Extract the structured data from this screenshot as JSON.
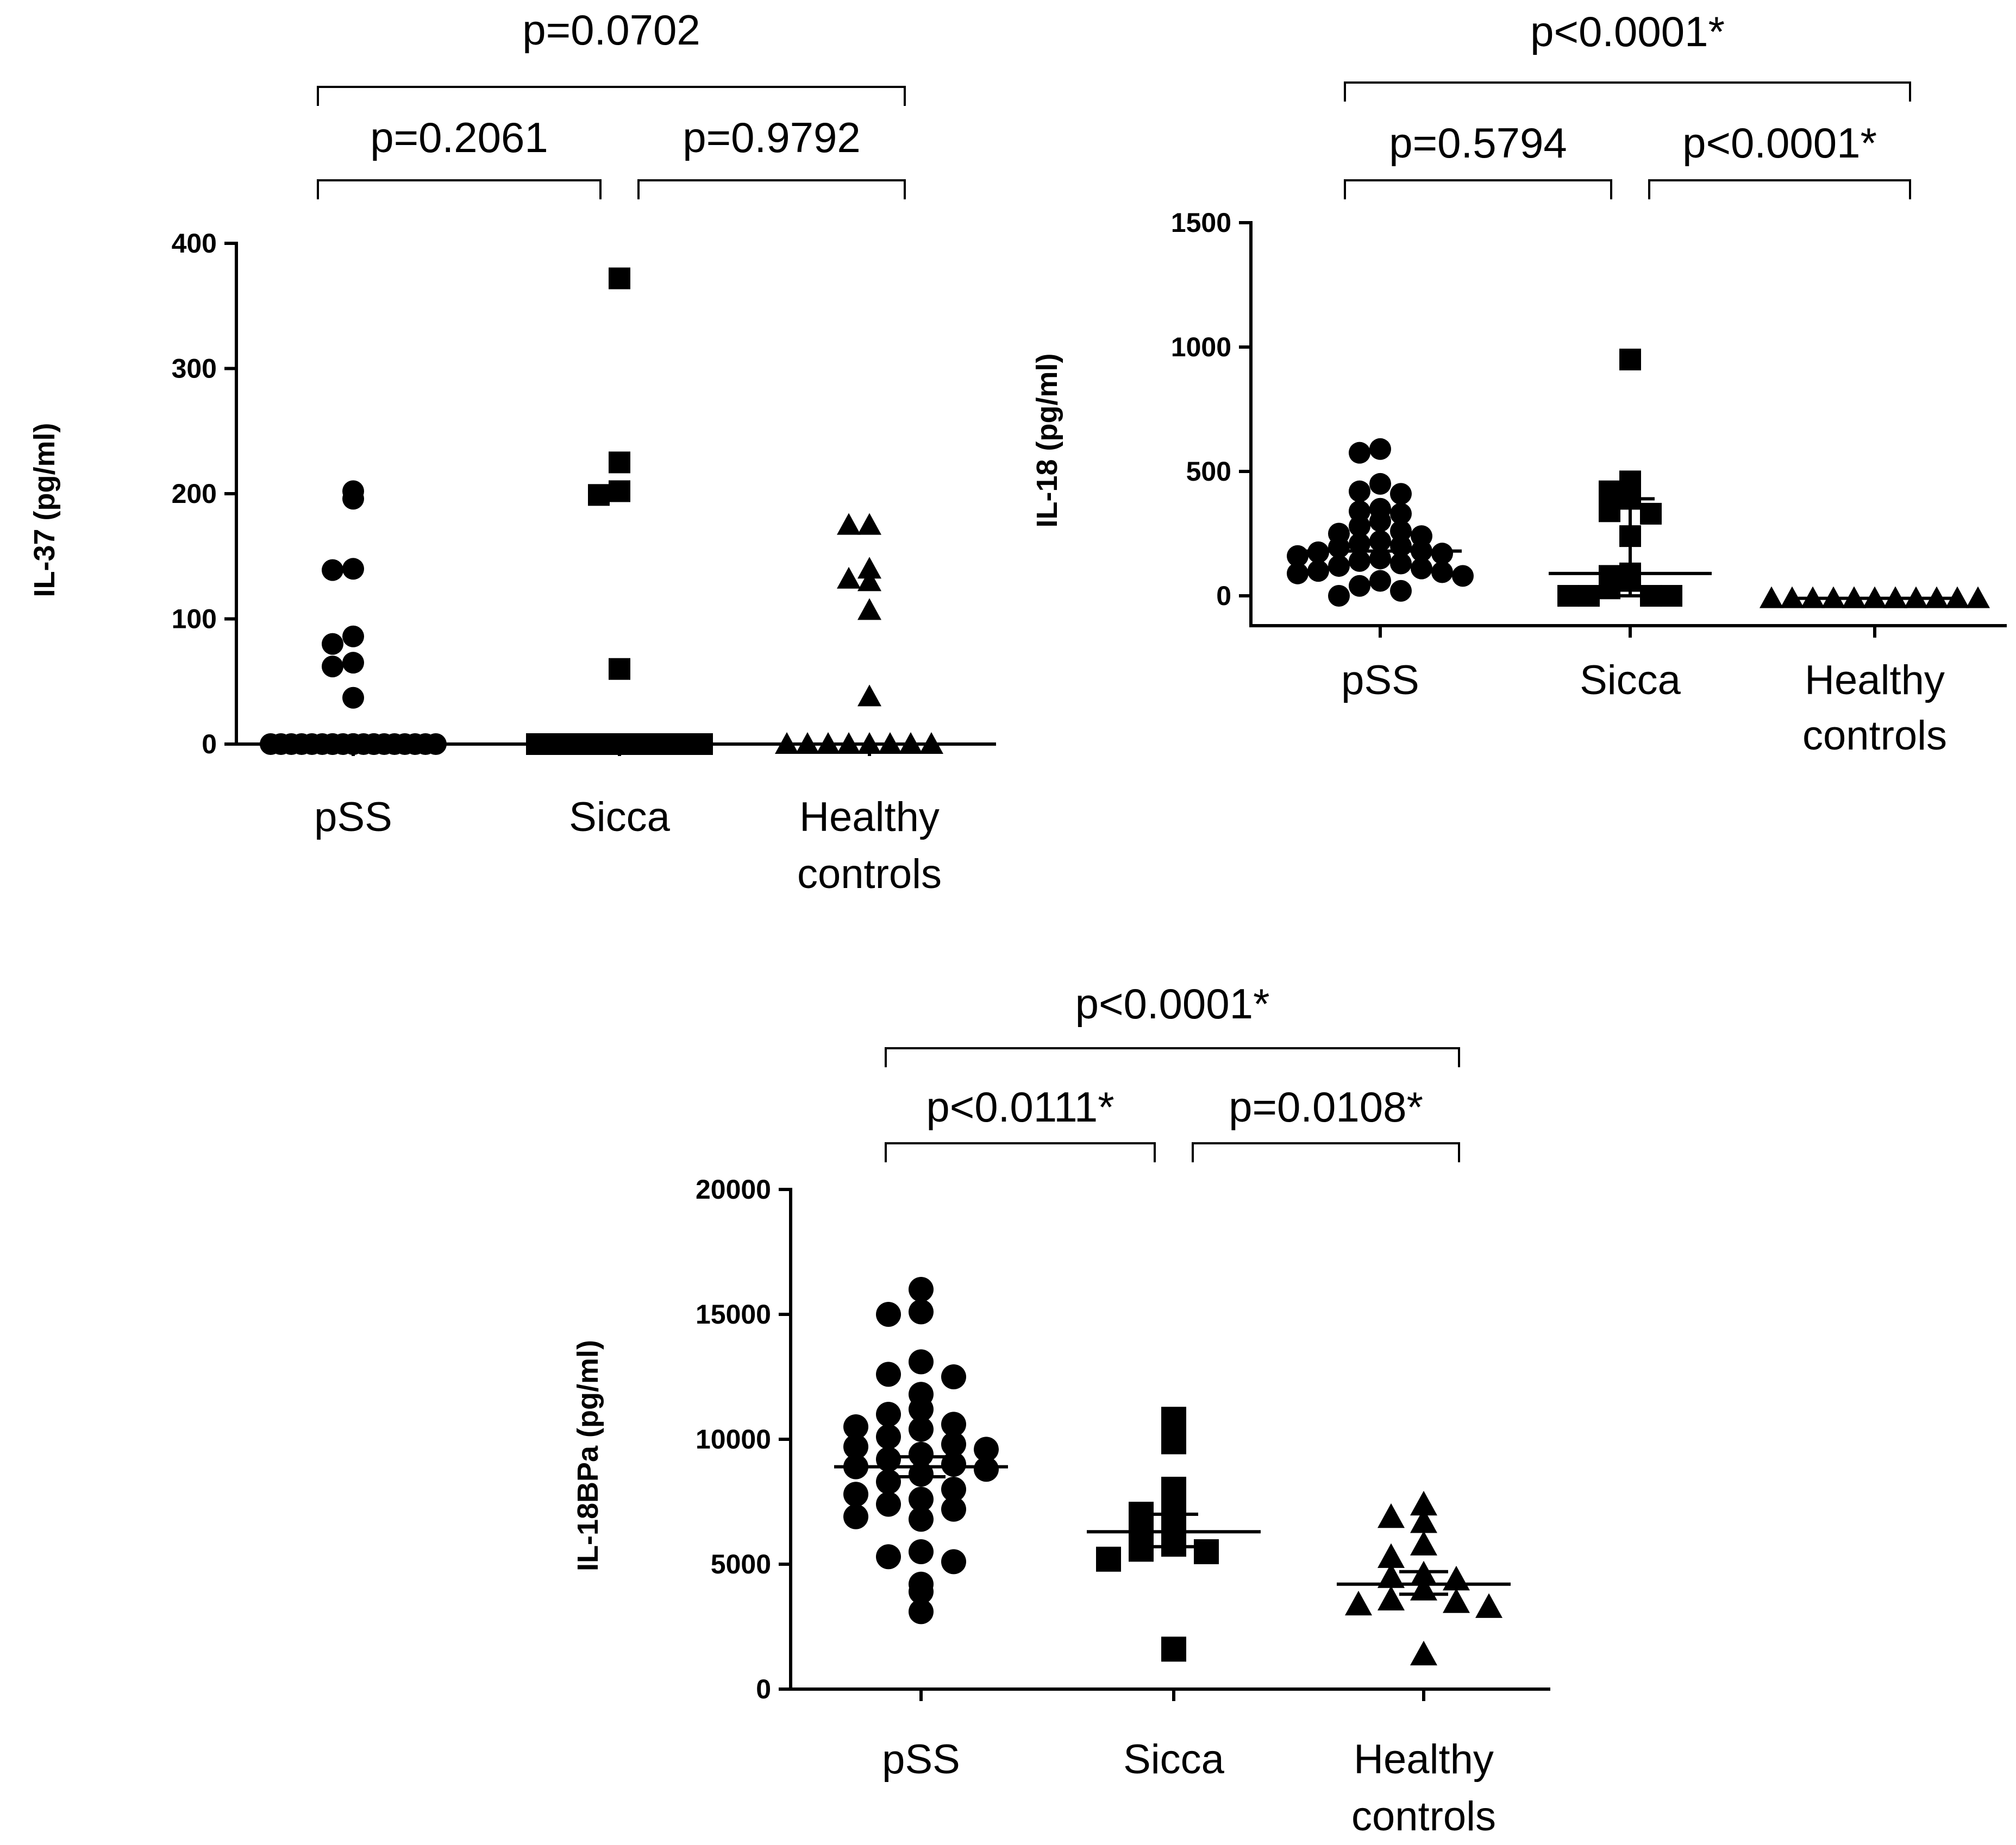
{
  "chart_data": [
    {
      "type": "scatter",
      "ylabel": "IL-37 (pg/ml)",
      "ylim": [
        0,
        400
      ],
      "yticks": [
        "0",
        "100",
        "200",
        "300",
        "400"
      ],
      "categories": [
        "pSS",
        "Sicca",
        "Healthy\ncontrols"
      ],
      "category_labels": [
        [
          "pSS"
        ],
        [
          "Sicca"
        ],
        [
          "Healthy",
          "controls"
        ]
      ],
      "markers": [
        "circle",
        "square",
        "triangle"
      ],
      "series": [
        {
          "name": "pSS",
          "values": [
            202,
            196,
            140,
            139,
            86,
            80,
            65,
            62,
            37,
            0,
            0,
            0,
            0,
            0,
            0,
            0,
            0,
            0,
            0,
            0,
            0,
            0,
            0,
            0,
            0,
            0,
            0,
            0,
            0,
            0
          ],
          "median": 0
        },
        {
          "name": "Sicca",
          "values": [
            372,
            225,
            202,
            199,
            60,
            0,
            0,
            0,
            0,
            0,
            0,
            0,
            0,
            0,
            0
          ],
          "median": 0
        },
        {
          "name": "Healthy controls",
          "values": [
            175,
            175,
            140,
            130,
            132,
            107,
            38,
            0,
            0,
            0,
            0,
            0,
            0,
            0,
            0
          ],
          "median": 0
        }
      ],
      "comparisons": [
        {
          "from": 0,
          "to": 2,
          "level": 0,
          "label": "p=0.0702"
        },
        {
          "from": 0,
          "to": 1,
          "level": 1,
          "label": "p=0.2061"
        },
        {
          "from": 1,
          "to": 2,
          "level": 1,
          "label": "p=0.9792"
        }
      ]
    },
    {
      "type": "scatter",
      "ylabel": "IL-18 (pg/ml)",
      "ylim": [
        -120,
        1500
      ],
      "yticks": [
        "0",
        "500",
        "1000",
        "1500"
      ],
      "categories": [
        "pSS",
        "Sicca",
        "Healthy\ncontrols"
      ],
      "category_labels": [
        [
          "pSS"
        ],
        [
          "Sicca"
        ],
        [
          "Healthy",
          "controls"
        ]
      ],
      "markers": [
        "circle",
        "square",
        "triangle"
      ],
      "series": [
        {
          "name": "pSS",
          "values": [
            590,
            575,
            450,
            420,
            410,
            350,
            340,
            330,
            300,
            280,
            260,
            250,
            240,
            220,
            210,
            200,
            195,
            180,
            175,
            170,
            160,
            150,
            140,
            130,
            120,
            110,
            100,
            95,
            90,
            80,
            60,
            40,
            20,
            0
          ],
          "median": 180
        },
        {
          "name": "Sicca",
          "values": [
            950,
            460,
            420,
            390,
            340,
            330,
            240,
            90,
            80,
            60,
            30,
            0,
            0,
            0,
            0
          ],
          "median": 90,
          "q1": 0,
          "q3": 390
        },
        {
          "name": "Healthy controls",
          "values": [
            -10,
            -10,
            -10,
            -10,
            -10,
            -10,
            -10,
            -10,
            -10,
            -10,
            -10,
            -10,
            -10
          ],
          "median": -10
        }
      ],
      "comparisons": [
        {
          "from": 0,
          "to": 2,
          "level": 0,
          "label": "p<0.0001*"
        },
        {
          "from": 0,
          "to": 1,
          "level": 1,
          "label": "p=0.5794"
        },
        {
          "from": 1,
          "to": 2,
          "level": 1,
          "label": "p<0.0001*"
        }
      ]
    },
    {
      "type": "scatter",
      "ylabel": "IL-18BPa (pg/ml)",
      "ylim": [
        0,
        20000
      ],
      "yticks": [
        "0",
        "5000",
        "10000",
        "15000",
        "20000"
      ],
      "categories": [
        "pSS",
        "Sicca",
        "Healthy\ncontrols"
      ],
      "category_labels": [
        [
          "pSS"
        ],
        [
          "Sicca"
        ],
        [
          "Healthy",
          "controls"
        ]
      ],
      "markers": [
        "circle",
        "square",
        "triangle"
      ],
      "series": [
        {
          "name": "pSS",
          "values": [
            16000,
            15100,
            15000,
            13100,
            12600,
            12500,
            11800,
            11200,
            11000,
            10600,
            10500,
            10400,
            10100,
            9800,
            9700,
            9600,
            9400,
            9200,
            9000,
            8900,
            8800,
            8600,
            8300,
            8000,
            7800,
            7600,
            7400,
            7200,
            6900,
            6800,
            5500,
            5300,
            5100,
            4200,
            3900,
            3100
          ],
          "mean": 8900,
          "sem_low": 8500,
          "sem_high": 9300
        },
        {
          "name": "Sicca",
          "values": [
            10800,
            9900,
            8000,
            7100,
            7000,
            6600,
            6000,
            5800,
            5600,
            5500,
            5200,
            1600
          ],
          "mean": 6300,
          "sem_low": 5700,
          "sem_high": 7000
        },
        {
          "name": "Healthy controls",
          "values": [
            7400,
            6900,
            6700,
            5800,
            5300,
            4600,
            4500,
            4400,
            4000,
            3600,
            3500,
            3400,
            3300,
            1400
          ],
          "mean": 4200,
          "sem_low": 3800,
          "sem_high": 4700
        }
      ],
      "comparisons": [
        {
          "from": 0,
          "to": 2,
          "level": 0,
          "label": "p<0.0001*"
        },
        {
          "from": 0,
          "to": 1,
          "level": 1,
          "label": "p<0.0111*"
        },
        {
          "from": 1,
          "to": 2,
          "level": 1,
          "label": "p=0.0108*"
        }
      ]
    }
  ]
}
